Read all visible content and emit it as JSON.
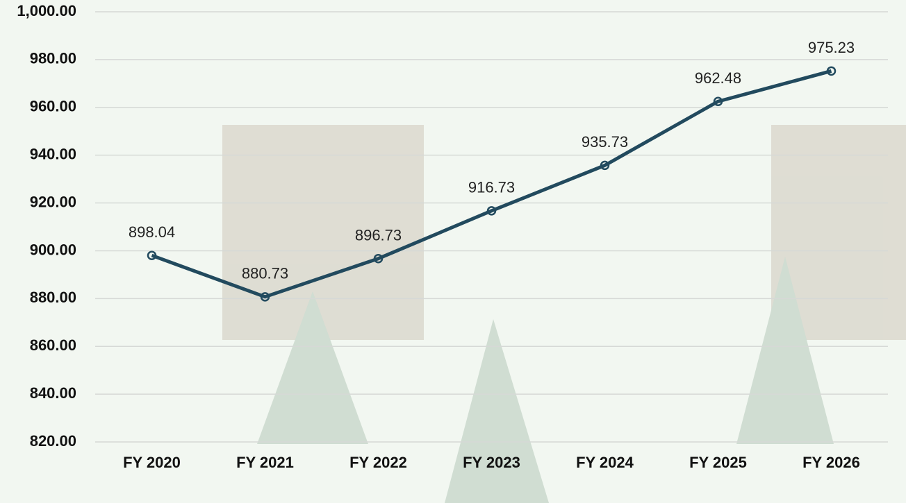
{
  "chart_data": {
    "type": "line",
    "categories": [
      "FY 2020",
      "FY 2021",
      "FY 2022",
      "FY 2023",
      "FY 2024",
      "FY 2025",
      "FY 2026"
    ],
    "series": [
      {
        "color": "#224a5e",
        "values": [
          898.04,
          880.73,
          896.73,
          916.73,
          935.73,
          962.48,
          975.23
        ]
      }
    ],
    "ylim": [
      820,
      1000
    ],
    "yticks": [
      {
        "value": 820,
        "label": "820.00"
      },
      {
        "value": 840,
        "label": "840.00"
      },
      {
        "value": 860,
        "label": "860.00"
      },
      {
        "value": 880,
        "label": "880.00"
      },
      {
        "value": 900,
        "label": "900.00"
      },
      {
        "value": 920,
        "label": "920.00"
      },
      {
        "value": 940,
        "label": "940.00"
      },
      {
        "value": 960,
        "label": "960.00"
      },
      {
        "value": 980,
        "label": "980.00"
      },
      {
        "value": 1000,
        "label": "1,000.00"
      }
    ],
    "grid": true
  }
}
